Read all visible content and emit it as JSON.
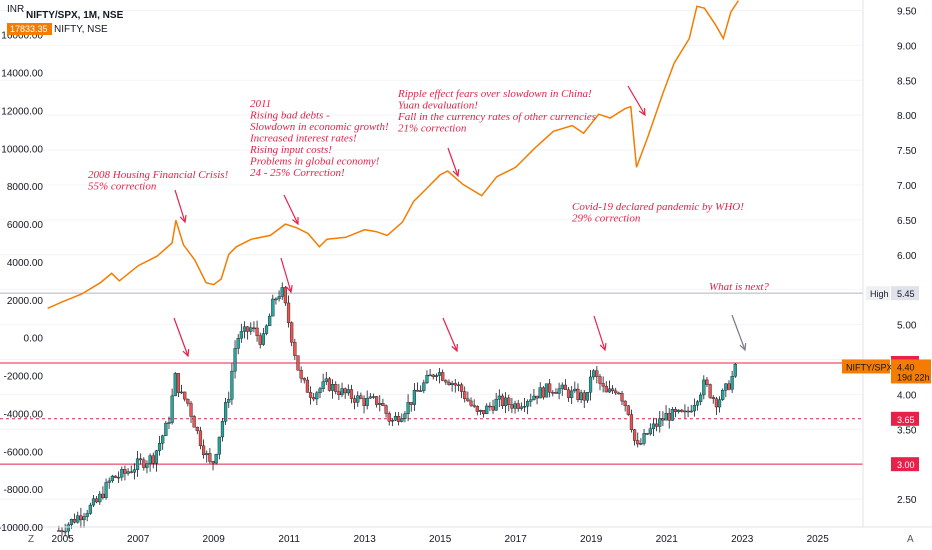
{
  "header": {
    "currency": "INR",
    "symbol_line": "NIFTY/SPX, 1M, NSE",
    "nifty_value": "17833.35",
    "nifty_label": "NIFTY, NSE"
  },
  "chart_data": {
    "type": "line",
    "x_ticks": [
      "2005",
      "2007",
      "2009",
      "2011",
      "2013",
      "2015",
      "2017",
      "2019",
      "2021",
      "2023",
      "2025"
    ],
    "left_axis": {
      "ticks": [
        "-10000.00",
        "-8000.00",
        "-6000.00",
        "-4000.00",
        "-2000.00",
        "0.00",
        "2000.00",
        "4000.00",
        "6000.00",
        "8000.00",
        "10000.00",
        "12000.00",
        "14000.00",
        "16000.00"
      ],
      "range": [
        -10000,
        17833.35
      ]
    },
    "right_axis": {
      "ticks": [
        "2.50",
        "3.00",
        "3.50",
        "4.00",
        "4.50",
        "5.00",
        "5.50",
        "6.00",
        "6.50",
        "7.00",
        "7.50",
        "8.00",
        "8.50",
        "9.00",
        "9.50"
      ],
      "range": [
        2.1,
        9.65
      ]
    },
    "series": [
      {
        "name": "NIFTY",
        "type": "line",
        "color": "#f57c00",
        "x": [
          2004.6,
          2005.0,
          2005.5,
          2006.0,
          2006.3,
          2006.5,
          2007.0,
          2007.5,
          2007.9,
          2008.0,
          2008.2,
          2008.5,
          2008.8,
          2009.0,
          2009.2,
          2009.4,
          2009.6,
          2010.0,
          2010.5,
          2010.9,
          2011.2,
          2011.5,
          2011.8,
          2012.0,
          2012.5,
          2013.0,
          2013.3,
          2013.6,
          2014.0,
          2014.3,
          2014.6,
          2015.0,
          2015.2,
          2015.6,
          2016.1,
          2016.5,
          2017.0,
          2017.5,
          2018.0,
          2018.5,
          2018.8,
          2019.2,
          2019.5,
          2019.9,
          2020.05,
          2020.2,
          2020.5,
          2020.9,
          2021.2,
          2021.6,
          2021.8,
          2022.0,
          2022.3,
          2022.5,
          2022.7,
          2022.9
        ],
        "y": [
          1550,
          1900,
          2300,
          2900,
          3400,
          3000,
          3800,
          4300,
          5000,
          6200,
          4900,
          4100,
          2900,
          2800,
          3100,
          4400,
          4800,
          5200,
          5400,
          6000,
          5800,
          5500,
          4800,
          5200,
          5300,
          5700,
          5600,
          5400,
          6100,
          7200,
          7800,
          8600,
          8800,
          8100,
          7500,
          8500,
          9000,
          10000,
          10900,
          11200,
          10800,
          11800,
          11600,
          12100,
          12200,
          9000,
          10600,
          12900,
          14500,
          15800,
          17500,
          17400,
          16500,
          15800,
          17200,
          17800
        ]
      },
      {
        "name": "NIFTY/SPX",
        "type": "candlestick",
        "x": [
          2004.9,
          2005.4,
          2005.9,
          2006.3,
          2006.6,
          2007.0,
          2007.4,
          2007.8,
          2008.0,
          2008.1,
          2008.3,
          2008.6,
          2008.9,
          2009.0,
          2009.2,
          2009.4,
          2009.6,
          2010.0,
          2010.3,
          2010.6,
          2010.8,
          2011.0,
          2011.3,
          2011.6,
          2012.0,
          2012.5,
          2013.0,
          2013.4,
          2013.7,
          2014.0,
          2014.5,
          2014.9,
          2015.0,
          2015.5,
          2016.0,
          2016.5,
          2017.0,
          2017.5,
          2018.0,
          2018.5,
          2018.9,
          2019.0,
          2019.4,
          2019.7,
          2020.0,
          2020.2,
          2020.5,
          2021.0,
          2021.5,
          2022.0,
          2022.3,
          2022.5,
          2022.7,
          2022.85
        ],
        "y": [
          2.05,
          2.25,
          2.45,
          2.8,
          2.85,
          3.0,
          3.1,
          3.6,
          4.3,
          4.0,
          3.9,
          3.4,
          3.0,
          3.05,
          3.55,
          4.0,
          4.8,
          4.95,
          4.75,
          5.35,
          5.5,
          5.0,
          4.2,
          4.0,
          4.15,
          4.0,
          3.9,
          3.9,
          3.6,
          3.75,
          4.1,
          4.35,
          4.3,
          4.1,
          3.7,
          3.9,
          3.85,
          4.0,
          4.1,
          4.0,
          3.95,
          4.35,
          4.0,
          4.1,
          3.75,
          3.2,
          3.45,
          3.7,
          3.7,
          4.15,
          3.9,
          4.0,
          4.2,
          4.4
        ]
      }
    ],
    "levels": [
      {
        "value": "4.45",
        "style": "solid"
      },
      {
        "value": "3.65",
        "style": "dashed"
      },
      {
        "value": "3.00",
        "style": "solid"
      }
    ],
    "high": {
      "label": "High",
      "value": "5.45"
    },
    "last": {
      "label": "NIFTY/SPX",
      "value": "4.40",
      "sub": "19d 22h"
    },
    "annotations": [
      {
        "lines": [
          "2008 Housing Financial Crisis!",
          "55% correction"
        ]
      },
      {
        "lines": [
          "2011",
          "Rising bad debts -",
          "Slowdown in economic growth!",
          "Increased interest rates!",
          "Rising input costs!",
          "Problems in global economy!",
          "24 - 25% Correction!"
        ]
      },
      {
        "lines": [
          "Ripple effect fears over slowdown in China!",
          "Yuan devaluation!",
          "Fall in the currency rates of other currencies",
          "21% correction"
        ]
      },
      {
        "lines": [
          "Covid-19 declared pandemic by WHO!",
          "29% correction"
        ]
      },
      {
        "lines": [
          "What is next?"
        ]
      }
    ],
    "colors": {
      "accent": "#e8214a",
      "up": "#26a69a",
      "down": "#ef5350",
      "line": "#f57c00"
    }
  },
  "footer": {
    "left_icon": "zoom-icon",
    "right_label": "A"
  }
}
